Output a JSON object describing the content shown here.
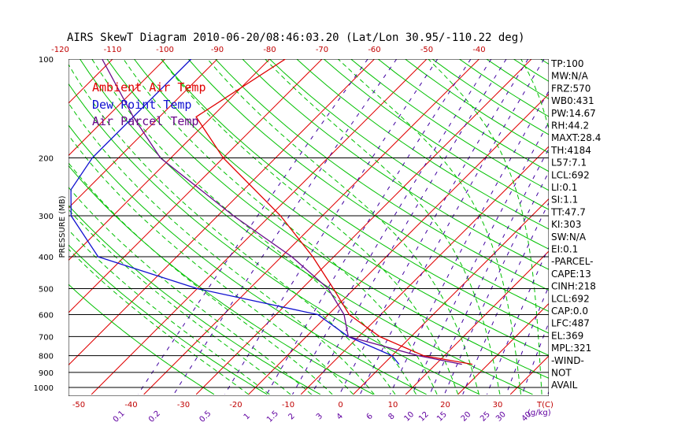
{
  "chart_data": {
    "type": "line",
    "title": "AIRS SkewT Diagram 2010-06-20/08:46:03.20 (Lat/Lon 30.95/-110.22 deg)",
    "ylabel": "PRESSURE (MB)",
    "xlabel_bottom": "T(C)",
    "mixing_ratio_label": "(g/kg)",
    "pressure_ticks": [
      "100",
      "200",
      "300",
      "400",
      "500",
      "600",
      "700",
      "800",
      "900",
      "1000"
    ],
    "bottom_temp_ticks": [
      "-50",
      "-40",
      "-30",
      "-20",
      "-10",
      "0",
      "10",
      "20",
      "30"
    ],
    "top_temp_ticks": [
      "-120",
      "-110",
      "-100",
      "-90",
      "-80",
      "-70",
      "-60",
      "-50",
      "-40"
    ],
    "mixing_ratio_ticks": [
      "0.1",
      "0.2",
      "0.5",
      "1",
      "1.5",
      "2",
      "3",
      "4",
      "6",
      "8",
      "10",
      "12",
      "15",
      "20",
      "25",
      "30",
      "40"
    ],
    "legend": [
      {
        "label": "Ambient Air Temp",
        "color": "#e00000"
      },
      {
        "label": "Dew Point Temp",
        "color": "#1010d0"
      },
      {
        "label": "Air Parcel Temp",
        "color": "#6a0a8a"
      }
    ],
    "series": [
      {
        "name": "Ambient Air Temp",
        "color": "#e00000",
        "points": [
          [
            100,
            -77
          ],
          [
            150,
            -83
          ],
          [
            200,
            -70
          ],
          [
            300,
            -48
          ],
          [
            400,
            -34
          ],
          [
            500,
            -24
          ],
          [
            600,
            -16
          ],
          [
            700,
            -6
          ],
          [
            800,
            6
          ],
          [
            850,
            17
          ]
        ]
      },
      {
        "name": "Dew Point Temp",
        "color": "#1010d0",
        "points": [
          [
            100,
            -95
          ],
          [
            200,
            -95
          ],
          [
            250,
            -93
          ],
          [
            300,
            -88
          ],
          [
            400,
            -75
          ],
          [
            500,
            -50
          ],
          [
            600,
            -22
          ],
          [
            700,
            -12
          ],
          [
            800,
            0
          ],
          [
            850,
            3
          ]
        ]
      },
      {
        "name": "Air Parcel Temp",
        "color": "#6a0a8a",
        "points": [
          [
            100,
            -112
          ],
          [
            150,
            -95
          ],
          [
            200,
            -82
          ],
          [
            300,
            -57
          ],
          [
            400,
            -38
          ],
          [
            500,
            -25
          ],
          [
            600,
            -17
          ],
          [
            700,
            -12
          ],
          [
            800,
            5
          ],
          [
            850,
            15
          ]
        ]
      }
    ],
    "indices": [
      "TP:100",
      "MW:N/A",
      "FRZ:570",
      "WB0:431",
      "PW:14.67",
      "RH:44.2",
      "MAXT:28.4",
      "TH:4184",
      "L57:7.1",
      "LCL:692",
      "LI:0.1",
      "SI:1.1",
      "TT:47.7",
      "KI:303",
      "SW:N/A",
      "EI:0.1",
      "-PARCEL-",
      "CAPE:13",
      "CINH:218",
      "LCL:692",
      "CAP:0.0",
      "LFC:487",
      "EL:369",
      "MPL:321",
      "-WIND-",
      "NOT",
      "AVAIL"
    ]
  },
  "colors": {
    "isotherm": "#e00000",
    "dry_adiabat": "#00c000",
    "moist_adiabat": "#00c000",
    "mixing_ratio": "#4000a0",
    "isobar": "#000000",
    "bottom_tick_text": "#c00000",
    "mixing_tick_text": "#6000a0"
  }
}
